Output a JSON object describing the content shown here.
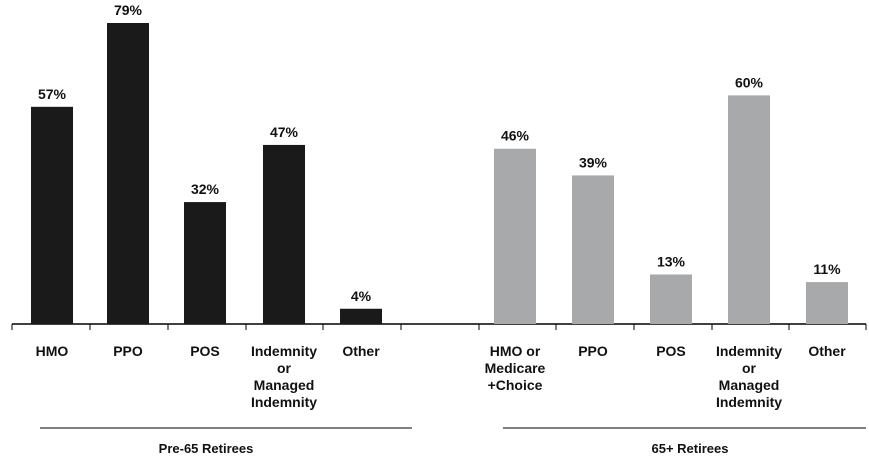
{
  "chart_data": {
    "type": "bar",
    "title": "",
    "xlabel": "",
    "ylabel": "",
    "ylim": [
      0,
      79
    ],
    "value_suffix": "%",
    "colors": {
      "Pre-65 Retirees": "#1a1a1a",
      "65+ Retirees": "#a8a9ab"
    },
    "groups": [
      {
        "name": "Pre-65 Retirees",
        "categories": [
          [
            "HMO"
          ],
          [
            "PPO"
          ],
          [
            "POS"
          ],
          [
            "Indemnity",
            "or",
            "Managed",
            "Indemnity"
          ],
          [
            "Other"
          ]
        ],
        "values": [
          57,
          79,
          32,
          47,
          4
        ]
      },
      {
        "name": "65+ Retirees",
        "categories": [
          [
            "HMO or",
            "Medicare",
            "+Choice"
          ],
          [
            "PPO"
          ],
          [
            "POS"
          ],
          [
            "Indemnity",
            "or",
            "Managed",
            "Indemnity"
          ],
          [
            "Other"
          ]
        ],
        "values": [
          46,
          39,
          13,
          60,
          11
        ]
      }
    ]
  }
}
